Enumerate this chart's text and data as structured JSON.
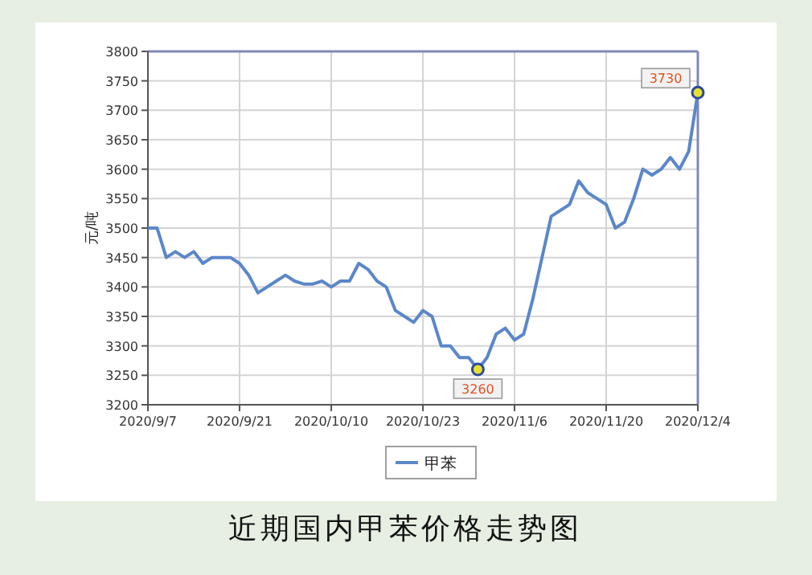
{
  "chart_data": {
    "type": "line",
    "ylabel": "元/吨",
    "categories": [
      "2020/9/7",
      null,
      null,
      null,
      null,
      null,
      null,
      null,
      null,
      null,
      "2020/9/21",
      null,
      null,
      null,
      null,
      null,
      null,
      null,
      null,
      null,
      "2020/10/10",
      null,
      null,
      null,
      null,
      null,
      null,
      null,
      null,
      null,
      "2020/10/23",
      null,
      null,
      null,
      null,
      null,
      null,
      null,
      null,
      null,
      "2020/11/6",
      null,
      null,
      null,
      null,
      null,
      null,
      null,
      null,
      null,
      "2020/11/20",
      null,
      null,
      null,
      null,
      null,
      null,
      null,
      null,
      null,
      "2020/12/4"
    ],
    "series": [
      {
        "name": "甲苯",
        "color": "#5b87c9",
        "values": [
          3500,
          3500,
          3450,
          3460,
          3450,
          3460,
          3440,
          3450,
          3450,
          3450,
          3440,
          3420,
          3390,
          3400,
          3410,
          3420,
          3410,
          3405,
          3405,
          3410,
          3400,
          3410,
          3410,
          3440,
          3430,
          3410,
          3400,
          3360,
          3350,
          3340,
          3360,
          3350,
          3300,
          3300,
          3280,
          3280,
          3260,
          3280,
          3320,
          3330,
          3310,
          3320,
          3380,
          3450,
          3520,
          3530,
          3540,
          3580,
          3560,
          3550,
          3540,
          3500,
          3510,
          3550,
          3600,
          3590,
          3600,
          3620,
          3600,
          3630,
          3730
        ]
      }
    ],
    "ylim": [
      3200,
      3800
    ],
    "yticks": [
      3200,
      3250,
      3300,
      3350,
      3400,
      3450,
      3500,
      3550,
      3600,
      3650,
      3700,
      3750,
      3800
    ],
    "grid": true,
    "legend": "bottom",
    "marker": "none",
    "line_style": "solid",
    "annotations": [
      {
        "text": "3260",
        "y": 3260
      },
      {
        "text": "3730",
        "x": "2020/12/4",
        "y": 3730
      },
      "近期国内甲苯价格走势图"
    ]
  }
}
